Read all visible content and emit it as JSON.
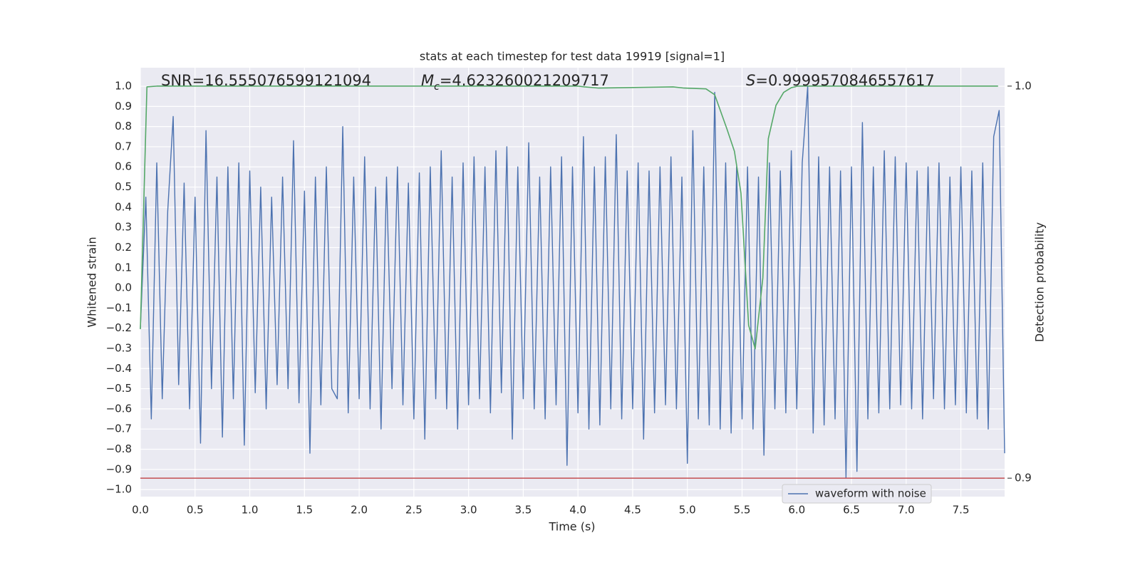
{
  "chart_data": {
    "type": "line",
    "title": "stats at each timestep for test data 19919 [signal=1]",
    "xlabel": "Time (s)",
    "ylabel": "Whitened strain",
    "y2label": "Detection probability",
    "annotations": [
      {
        "text": "SNR=16.555076599121094"
      },
      {
        "symbol": "M",
        "subscript": "c",
        "text": "=4.623260021209717"
      },
      {
        "symbol": "S",
        "text": "=0.9999570846557617"
      }
    ],
    "series": [
      {
        "name": "waveform with noise",
        "color": "#4c72b0",
        "x": [
          0,
          0.05,
          0.1,
          0.15,
          0.2,
          0.25,
          0.3,
          0.35,
          0.4,
          0.45,
          0.5,
          0.55,
          0.6,
          0.65,
          0.7,
          0.75,
          0.8,
          0.85,
          0.9,
          0.95,
          1.0,
          1.05,
          1.1,
          1.15,
          1.2,
          1.25,
          1.3,
          1.35,
          1.4,
          1.45,
          1.5,
          1.55,
          1.6,
          1.65,
          1.7,
          1.75,
          1.8,
          1.85,
          1.9,
          1.95,
          2.0,
          2.05,
          2.1,
          2.15,
          2.2,
          2.25,
          2.3,
          2.35,
          2.4,
          2.45,
          2.5,
          2.55,
          2.6,
          2.65,
          2.7,
          2.75,
          2.8,
          2.85,
          2.9,
          2.95,
          3.0,
          3.05,
          3.1,
          3.15,
          3.2,
          3.25,
          3.3,
          3.35,
          3.4,
          3.45,
          3.5,
          3.55,
          3.6,
          3.65,
          3.7,
          3.75,
          3.8,
          3.85,
          3.9,
          3.95,
          4.0,
          4.05,
          4.1,
          4.15,
          4.2,
          4.25,
          4.3,
          4.35,
          4.4,
          4.45,
          4.5,
          4.55,
          4.6,
          4.65,
          4.7,
          4.75,
          4.8,
          4.85,
          4.9,
          4.95,
          5.0,
          5.05,
          5.1,
          5.15,
          5.2,
          5.25,
          5.3,
          5.35,
          5.4,
          5.45,
          5.5,
          5.55,
          5.6,
          5.65,
          5.7,
          5.75,
          5.8,
          5.85,
          5.9,
          5.95,
          6.0,
          6.05,
          6.1,
          6.15,
          6.2,
          6.25,
          6.3,
          6.35,
          6.4,
          6.45,
          6.5,
          6.55,
          6.6,
          6.65,
          6.7,
          6.75,
          6.8,
          6.85,
          6.9,
          6.95,
          7.0,
          7.05,
          7.1,
          7.15,
          7.2,
          7.25,
          7.3,
          7.35,
          7.4,
          7.45,
          7.5,
          7.55,
          7.6,
          7.65,
          7.7,
          7.75,
          7.8,
          7.85,
          7.9
        ],
        "values": [
          -0.2,
          0.45,
          -0.65,
          0.62,
          -0.55,
          0.38,
          0.85,
          -0.48,
          0.52,
          -0.6,
          0.45,
          -0.77,
          0.78,
          -0.5,
          0.55,
          -0.74,
          0.6,
          -0.55,
          0.62,
          -0.78,
          0.58,
          -0.52,
          0.5,
          -0.6,
          0.45,
          -0.48,
          0.55,
          -0.5,
          0.73,
          -0.57,
          0.48,
          -0.82,
          0.55,
          -0.58,
          0.6,
          -0.5,
          -0.55,
          0.8,
          -0.62,
          0.55,
          -0.55,
          0.65,
          -0.6,
          0.5,
          -0.7,
          0.55,
          -0.5,
          0.6,
          -0.58,
          0.52,
          -0.65,
          0.57,
          -0.75,
          0.6,
          -0.55,
          0.68,
          -0.6,
          0.55,
          -0.7,
          0.62,
          -0.58,
          0.65,
          -0.55,
          0.6,
          -0.62,
          0.68,
          -0.52,
          0.7,
          -0.75,
          0.6,
          -0.55,
          0.72,
          -0.6,
          0.55,
          -0.65,
          0.6,
          -0.58,
          0.65,
          -0.88,
          0.6,
          -0.62,
          0.75,
          -0.7,
          0.6,
          -0.68,
          0.65,
          -0.6,
          0.76,
          -0.65,
          0.58,
          -0.6,
          0.62,
          -0.75,
          0.58,
          -0.62,
          0.6,
          -0.58,
          0.65,
          -0.6,
          0.55,
          -0.87,
          0.78,
          -0.65,
          0.6,
          -0.68,
          0.97,
          -0.7,
          0.62,
          -0.72,
          0.6,
          -0.65,
          0.6,
          -0.7,
          0.55,
          -0.83,
          0.62,
          -0.6,
          0.58,
          -0.62,
          0.68,
          -0.6,
          0.62,
          1.0,
          -0.72,
          0.65,
          -0.68,
          0.6,
          -0.65,
          0.58,
          -0.94,
          0.6,
          -0.91,
          0.82,
          -0.65,
          0.6,
          -0.62,
          0.68,
          -0.6,
          0.65,
          -0.58,
          0.62,
          -0.6,
          0.58,
          -0.65,
          0.6,
          -0.55,
          0.62,
          -0.6,
          0.55,
          -0.58,
          0.6,
          -0.62,
          0.58,
          -0.65,
          0.62,
          -0.7,
          0.75,
          0.88,
          -0.82
        ]
      },
      {
        "color": "#55a868",
        "axis": "y2",
        "x": [
          0,
          0.06,
          0.15,
          1.0,
          2.0,
          3.0,
          4.0,
          4.06,
          4.19,
          4.42,
          4.87,
          4.97,
          5.17,
          5.25,
          5.36,
          5.43,
          5.49,
          5.56,
          5.62,
          5.69,
          5.74,
          5.81,
          5.88,
          5.95,
          6.01,
          7.0,
          7.84
        ],
        "values": [
          0.938,
          0.9998,
          1.0,
          1.0,
          1.0,
          1.0,
          1.0,
          0.9998,
          0.9995,
          0.9996,
          0.9998,
          0.9995,
          0.9993,
          0.9978,
          0.9892,
          0.9834,
          0.9727,
          0.939,
          0.933,
          0.9511,
          0.9866,
          0.9951,
          0.9984,
          0.9996,
          1.0,
          1.0,
          1.0
        ]
      }
    ],
    "threshold": {
      "value": 0.9,
      "axis": "y2",
      "color": "#c44e52"
    },
    "xlim": [
      0,
      7.9
    ],
    "ylim": [
      -1.035,
      1.092
    ],
    "y2lim": [
      0.8953,
      1.0047
    ],
    "xticks": [
      {
        "value": 0,
        "label": "0.0"
      },
      {
        "value": 0.5,
        "label": "0.5"
      },
      {
        "value": 1,
        "label": "1.0"
      },
      {
        "value": 1.5,
        "label": "1.5"
      },
      {
        "value": 2,
        "label": "2.0"
      },
      {
        "value": 2.5,
        "label": "2.5"
      },
      {
        "value": 3,
        "label": "3.0"
      },
      {
        "value": 3.5,
        "label": "3.5"
      },
      {
        "value": 4,
        "label": "4.0"
      },
      {
        "value": 4.5,
        "label": "4.5"
      },
      {
        "value": 5,
        "label": "5.0"
      },
      {
        "value": 5.5,
        "label": "5.5"
      },
      {
        "value": 6,
        "label": "6.0"
      },
      {
        "value": 6.5,
        "label": "6.5"
      },
      {
        "value": 7,
        "label": "7.0"
      },
      {
        "value": 7.5,
        "label": "7.5"
      }
    ],
    "yticks": [
      {
        "value": 1,
        "label": "1.0"
      },
      {
        "value": 0.9,
        "label": "0.9"
      },
      {
        "value": 0.8,
        "label": "0.8"
      },
      {
        "value": 0.7,
        "label": "0.7"
      },
      {
        "value": 0.6,
        "label": "0.6"
      },
      {
        "value": 0.5,
        "label": "0.5"
      },
      {
        "value": 0.4,
        "label": "0.4"
      },
      {
        "value": 0.3,
        "label": "0.3"
      },
      {
        "value": 0.2,
        "label": "0.2"
      },
      {
        "value": 0.1,
        "label": "0.1"
      },
      {
        "value": 0,
        "label": "0.0"
      },
      {
        "value": -0.1,
        "label": "−0.1"
      },
      {
        "value": -0.2,
        "label": "−0.2"
      },
      {
        "value": -0.3,
        "label": "−0.3"
      },
      {
        "value": -0.4,
        "label": "−0.4"
      },
      {
        "value": -0.5,
        "label": "−0.5"
      },
      {
        "value": -0.6,
        "label": "−0.6"
      },
      {
        "value": -0.7,
        "label": "−0.7"
      },
      {
        "value": -0.8,
        "label": "−0.8"
      },
      {
        "value": -0.9,
        "label": "−0.9"
      },
      {
        "value": -1,
        "label": "−1.0"
      }
    ],
    "y2ticks": [
      {
        "value": 1,
        "label": "1.0"
      },
      {
        "value": 0.9,
        "label": "0.9"
      }
    ],
    "grid": true,
    "legend": "lower right"
  }
}
